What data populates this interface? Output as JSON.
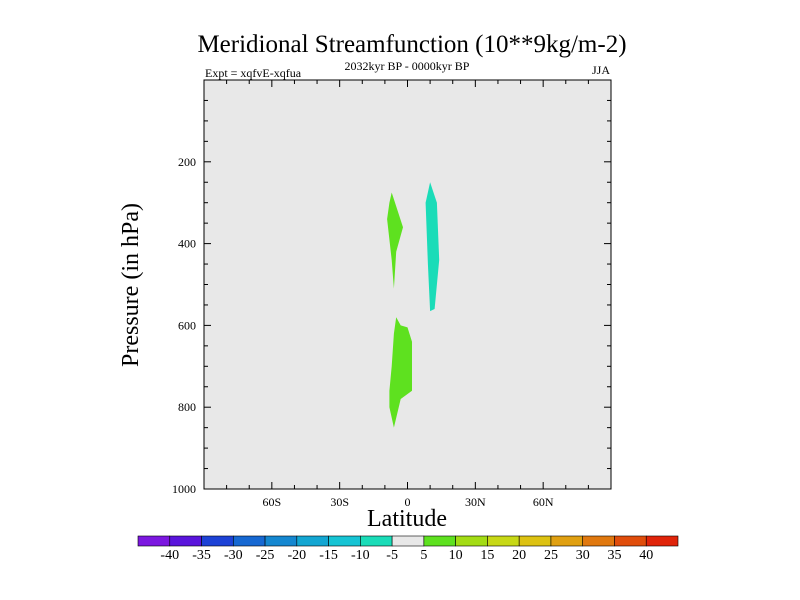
{
  "chart_data": {
    "type": "contour",
    "title": "Meridional Streamfunction (10**9kg/m-2)",
    "subtitle_left": "Expt = xqfvE-xqfua",
    "subtitle_center": "2032kyr BP - 0000kyr BP",
    "subtitle_right": "JJA",
    "xlabel": "Latitude",
    "ylabel": "Pressure (in hPa)",
    "xlim": [
      -90,
      90
    ],
    "ylim": [
      1000,
      0
    ],
    "x_ticks": [
      {
        "value": -60,
        "label": "60S"
      },
      {
        "value": -30,
        "label": "30S"
      },
      {
        "value": 0,
        "label": "0"
      },
      {
        "value": 30,
        "label": "30N"
      },
      {
        "value": 60,
        "label": "60N"
      }
    ],
    "y_ticks": [
      {
        "value": 200,
        "label": "200"
      },
      {
        "value": 400,
        "label": "400"
      },
      {
        "value": 600,
        "label": "600"
      },
      {
        "value": 800,
        "label": "800"
      },
      {
        "value": 1000,
        "label": "1000"
      }
    ],
    "background_color": "#e8e8e8",
    "regions": [
      {
        "name": "positive-upper",
        "level": "5 to 10",
        "color": "#5ee11f",
        "points": [
          [
            -7,
            275
          ],
          [
            -2,
            360
          ],
          [
            -5,
            420
          ],
          [
            -6,
            510
          ],
          [
            -7,
            440
          ],
          [
            -9,
            340
          ],
          [
            -8,
            300
          ]
        ]
      },
      {
        "name": "negative-upper",
        "level": "-10 to -5",
        "color": "#1adcb8",
        "points": [
          [
            10,
            250
          ],
          [
            13,
            300
          ],
          [
            14,
            440
          ],
          [
            12,
            560
          ],
          [
            10,
            565
          ],
          [
            9,
            450
          ],
          [
            8,
            300
          ]
        ]
      },
      {
        "name": "positive-lower",
        "level": "5 to 10",
        "color": "#5ee11f",
        "points": [
          [
            -5,
            580
          ],
          [
            -3,
            600
          ],
          [
            0,
            605
          ],
          [
            2,
            640
          ],
          [
            2,
            760
          ],
          [
            -3,
            780
          ],
          [
            -6,
            850
          ],
          [
            -8,
            800
          ],
          [
            -8,
            760
          ],
          [
            -7,
            700
          ],
          [
            -6,
            620
          ]
        ]
      }
    ],
    "colorbar": {
      "labels": [
        "-40",
        "-35",
        "-30",
        "-25",
        "-20",
        "-15",
        "-10",
        "-5",
        "5",
        "10",
        "15",
        "20",
        "25",
        "30",
        "35",
        "40"
      ],
      "colors": [
        "#7c17e0",
        "#5a14dc",
        "#1d42d6",
        "#1668d2",
        "#1487d0",
        "#13a6d2",
        "#16c4d4",
        "#1adcb8",
        "#e8e8e8",
        "#5ee11f",
        "#a3dc14",
        "#c7d816",
        "#ddc212",
        "#e0a011",
        "#e0780f",
        "#e04d0b",
        "#e0240a"
      ]
    }
  }
}
